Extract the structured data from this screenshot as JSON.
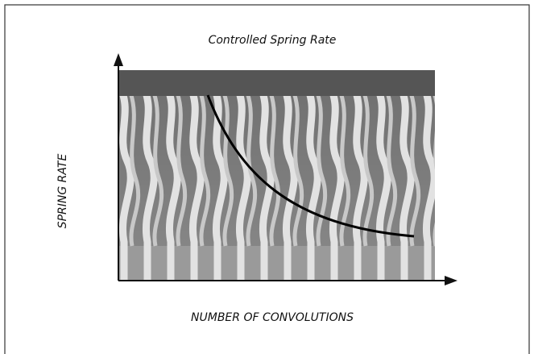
{
  "title": "Controlled Spring Rate",
  "y_axis_label": "SPRING RATE",
  "x_axis_label": "NUMBER OF CONVOLUTIONS"
}
